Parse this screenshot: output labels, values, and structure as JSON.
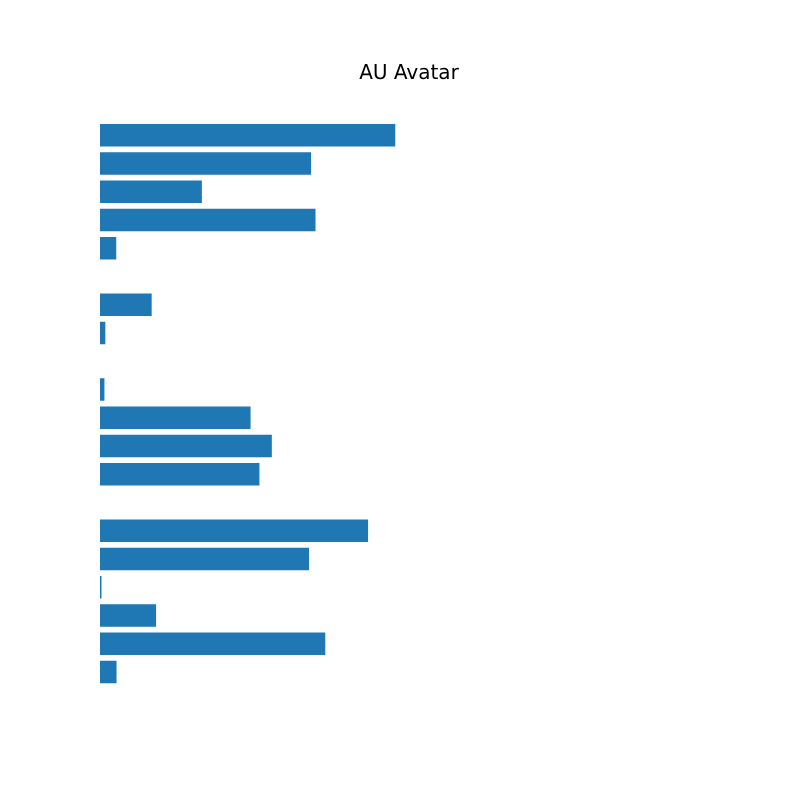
{
  "chart_data": {
    "type": "bar",
    "orientation": "horizontal",
    "title": "AU Avatar",
    "xlabel": "",
    "ylabel": "",
    "axes_visible": false,
    "grid": false,
    "bar_color": "#1f77b4",
    "values": [
      1.0,
      0.715,
      0.345,
      0.73,
      0.055,
      0.0,
      0.175,
      0.018,
      0.0,
      0.015,
      0.51,
      0.582,
      0.54,
      0.0,
      0.908,
      0.708,
      0.005,
      0.19,
      0.763,
      0.056
    ],
    "xlim": [
      0,
      2.1
    ]
  }
}
